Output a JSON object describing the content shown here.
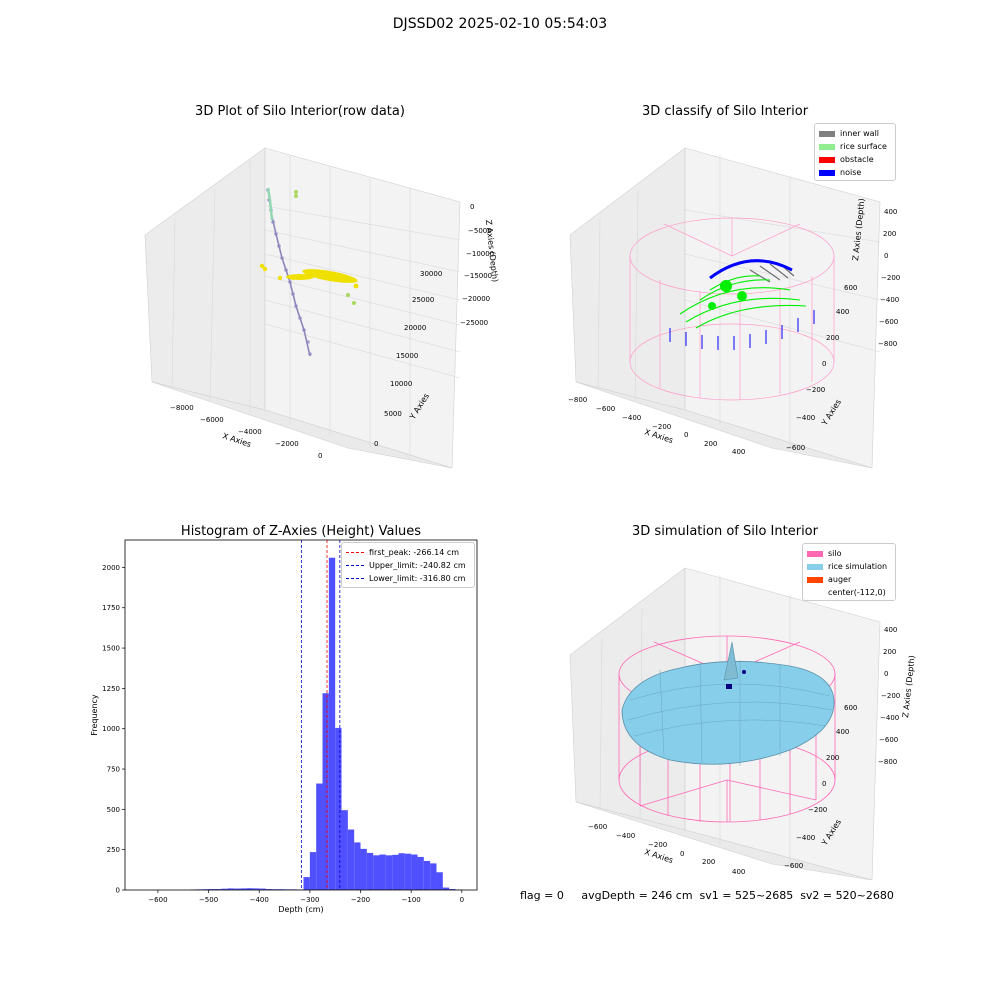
{
  "suptitle": "DJSSD02 2025-02-10 05:54:03",
  "footer": "flag = 0     avgDepth = 246 cm  sv1 = 525~2685  sv2 = 520~2680",
  "colors": {
    "hist_bar": "#5050ff",
    "peak_line": "#ff0000",
    "limit_line": "#0000cc",
    "inner_wall": "#808080",
    "rice_surface": "#90ee90",
    "obstacle": "#ff0000",
    "noise": "#0000ff",
    "silo": "#ff69b4",
    "rice_simulation": "#87ceeb",
    "auger": "#ff4500"
  },
  "chart_data": [
    {
      "type": "scatter",
      "title": "3D Plot of Silo Interior(row data)",
      "projection": "3d",
      "xlabel": "X Axies",
      "ylabel": "Y Axies",
      "zlabel": "Z Axies (Depth)",
      "x_ticks": [
        "-8000",
        "-6000",
        "-4000",
        "-2000",
        "0"
      ],
      "y_ticks": [
        "0",
        "5000",
        "10000",
        "15000",
        "20000",
        "25000",
        "30000"
      ],
      "z_ticks": [
        "0",
        "-5000",
        "-10000",
        "-15000",
        "-20000",
        "-25000"
      ],
      "series": [
        {
          "color": "#a0a0d0",
          "description_from_color_only": true,
          "values": [
            [
              -4800,
              29000,
              -500
            ],
            [
              -4600,
              26000,
              -5000
            ],
            [
              -4200,
              22000,
              -10000
            ],
            [
              -3600,
              17000,
              -15000
            ],
            [
              -3000,
              12000,
              -20000
            ],
            [
              -2600,
              8000,
              -25000
            ]
          ]
        },
        {
          "color": "#f0e000",
          "values": [
            [
              -3800,
              9000,
              -14000
            ],
            [
              -3400,
              9500,
              -14200
            ],
            [
              -3000,
              10000,
              -14400
            ],
            [
              -2600,
              10500,
              -14600
            ],
            [
              -2200,
              11000,
              -14800
            ],
            [
              -1800,
              11500,
              -15000
            ]
          ]
        },
        {
          "color": "#a0d060",
          "values": [
            [
              -4200,
              29000,
              -2000
            ],
            [
              -1600,
              11600,
              -18000
            ],
            [
              -1400,
              11000,
              -19500
            ]
          ]
        }
      ]
    },
    {
      "type": "scatter",
      "title": "3D classify of Silo Interior",
      "projection": "3d",
      "xlabel": "X Axies",
      "ylabel": "Y Axies",
      "zlabel": "Z Axies (Depth)",
      "x_ticks": [
        "-800",
        "-600",
        "-400",
        "-200",
        "0",
        "200",
        "400"
      ],
      "y_ticks": [
        "-600",
        "-400",
        "-200",
        "0",
        "200",
        "400",
        "600"
      ],
      "z_ticks": [
        "400",
        "200",
        "0",
        "-200",
        "-400",
        "-600",
        "-800"
      ],
      "legend": {
        "position": "top-right",
        "items": [
          "inner wall",
          "rice surface",
          "obstacle",
          "noise"
        ]
      },
      "series": [
        {
          "name": "inner wall",
          "color": "#808080"
        },
        {
          "name": "rice surface",
          "color": "#90ee90"
        },
        {
          "name": "obstacle",
          "color": "#ff0000"
        },
        {
          "name": "noise",
          "color": "#0000ff"
        }
      ]
    },
    {
      "type": "bar",
      "title": "Histogram of Z-Axies (Height) Values",
      "xlabel": "Depth (cm)",
      "ylabel": "Frequency",
      "xlim": [
        -665,
        30
      ],
      "ylim": [
        0,
        2170
      ],
      "x_ticks": [
        -600,
        -500,
        -400,
        -300,
        -200,
        -100,
        0
      ],
      "y_ticks": [
        0,
        250,
        500,
        750,
        1000,
        1250,
        1500,
        1750,
        2000
      ],
      "bin_width": 12.5,
      "bins": [
        [
          -537.5,
          3
        ],
        [
          -525,
          4
        ],
        [
          -512.5,
          5
        ],
        [
          -500,
          6
        ],
        [
          -487.5,
          6
        ],
        [
          -475,
          8
        ],
        [
          -462.5,
          10
        ],
        [
          -450,
          9
        ],
        [
          -437.5,
          10
        ],
        [
          -425,
          11
        ],
        [
          -412.5,
          10
        ],
        [
          -400,
          9
        ],
        [
          -387.5,
          6
        ],
        [
          -375,
          5
        ],
        [
          -362.5,
          5
        ],
        [
          -350,
          4
        ],
        [
          -337.5,
          4
        ],
        [
          -325,
          3
        ],
        [
          -312.5,
          80
        ],
        [
          -300,
          235
        ],
        [
          -287.5,
          660
        ],
        [
          -275,
          1220
        ],
        [
          -262.5,
          2060
        ],
        [
          -250,
          1005
        ],
        [
          -237.5,
          495
        ],
        [
          -225,
          375
        ],
        [
          -212.5,
          295
        ],
        [
          -200,
          255
        ],
        [
          -187.5,
          230
        ],
        [
          -175,
          215
        ],
        [
          -162.5,
          220
        ],
        [
          -150,
          215
        ],
        [
          -137.5,
          218
        ],
        [
          -125,
          228
        ],
        [
          -112.5,
          225
        ],
        [
          -100,
          220
        ],
        [
          -87.5,
          205
        ],
        [
          -75,
          180
        ],
        [
          -62.5,
          165
        ],
        [
          -50,
          110
        ],
        [
          -37.5,
          15
        ],
        [
          -25,
          6
        ],
        [
          -12.5,
          2
        ]
      ],
      "vlines": [
        {
          "label": "first_peak: -266.14 cm",
          "x": -266.14,
          "color": "#ff0000"
        },
        {
          "label": "Upper_limit: -240.82 cm",
          "x": -240.82,
          "color": "#0000cc"
        },
        {
          "label": "Lower_limit: -316.80 cm",
          "x": -316.8,
          "color": "#0000cc"
        }
      ],
      "legend": {
        "position": "top-right"
      }
    },
    {
      "type": "area",
      "title": "3D simulation of Silo Interior",
      "projection": "3d",
      "xlabel": "X Axies",
      "ylabel": "Y Axies",
      "zlabel": "Z Axies (Depth)",
      "x_ticks": [
        "-600",
        "-400",
        "-200",
        "0",
        "200",
        "400"
      ],
      "y_ticks": [
        "-600",
        "-400",
        "-200",
        "0",
        "200",
        "400",
        "600"
      ],
      "z_ticks": [
        "400",
        "200",
        "0",
        "-200",
        "-400",
        "-600",
        "-800"
      ],
      "legend": {
        "position": "top-right",
        "items": [
          "silo",
          "rice simulation",
          "auger",
          "center(-112,0)"
        ]
      },
      "series": [
        {
          "name": "silo",
          "color": "#ff69b4"
        },
        {
          "name": "rice simulation",
          "color": "#87ceeb"
        },
        {
          "name": "auger",
          "color": "#ff4500"
        },
        {
          "name": "center(-112,0)",
          "color": "#ffffff"
        }
      ]
    }
  ]
}
